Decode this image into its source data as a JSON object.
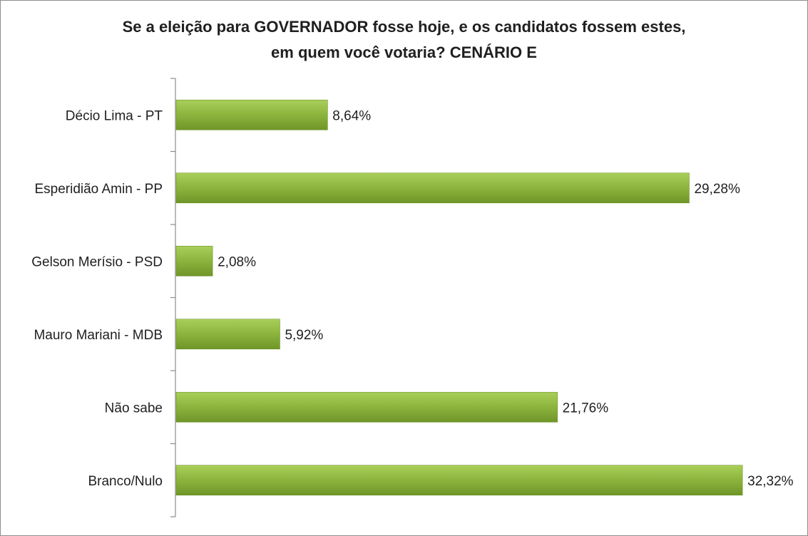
{
  "chart_data": {
    "type": "bar",
    "orientation": "horizontal",
    "title": {
      "line1": "Se a eleição para GOVERNADOR fosse hoje, e os candidatos fossem estes,",
      "line2": "em quem você votaria? CENÁRIO E"
    },
    "categories": [
      "Décio Lima - PT",
      "Esperidião Amin - PP",
      "Gelson Merísio - PSD",
      "Mauro Mariani - MDB",
      "Não sabe",
      "Branco/Nulo"
    ],
    "values": [
      8.64,
      29.28,
      2.08,
      5.92,
      21.76,
      32.32
    ],
    "value_labels": [
      "8,64%",
      "29,28%",
      "2,08%",
      "5,92%",
      "21,76%",
      "32,32%"
    ],
    "xlim": [
      0,
      35
    ],
    "grid": false,
    "legend": "none",
    "bar_color": "#8fb73f"
  }
}
